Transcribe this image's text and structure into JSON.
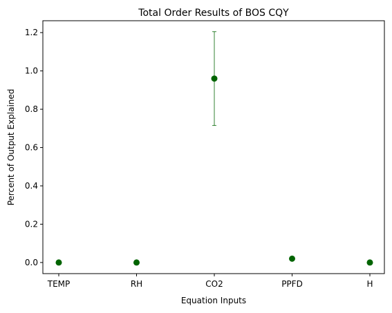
{
  "chart_data": {
    "type": "scatter",
    "title": "Total Order Results of BOS CQY",
    "xlabel": "Equation Inputs",
    "ylabel": "Percent of Output Explained",
    "categories": [
      "TEMP",
      "RH",
      "CO2",
      "PPFD",
      "H"
    ],
    "series": [
      {
        "values": [
          0.0,
          0.0,
          0.96,
          0.02,
          0.0
        ],
        "error": [
          0.0,
          0.0,
          0.245,
          0.0,
          0.0
        ],
        "color": "#006400"
      }
    ],
    "ylim": [
      -0.058,
      1.262
    ],
    "yticks": [
      "0.0",
      "0.2",
      "0.4",
      "0.6",
      "0.8",
      "1.0",
      "1.2"
    ],
    "grid": false,
    "legend": "none"
  }
}
